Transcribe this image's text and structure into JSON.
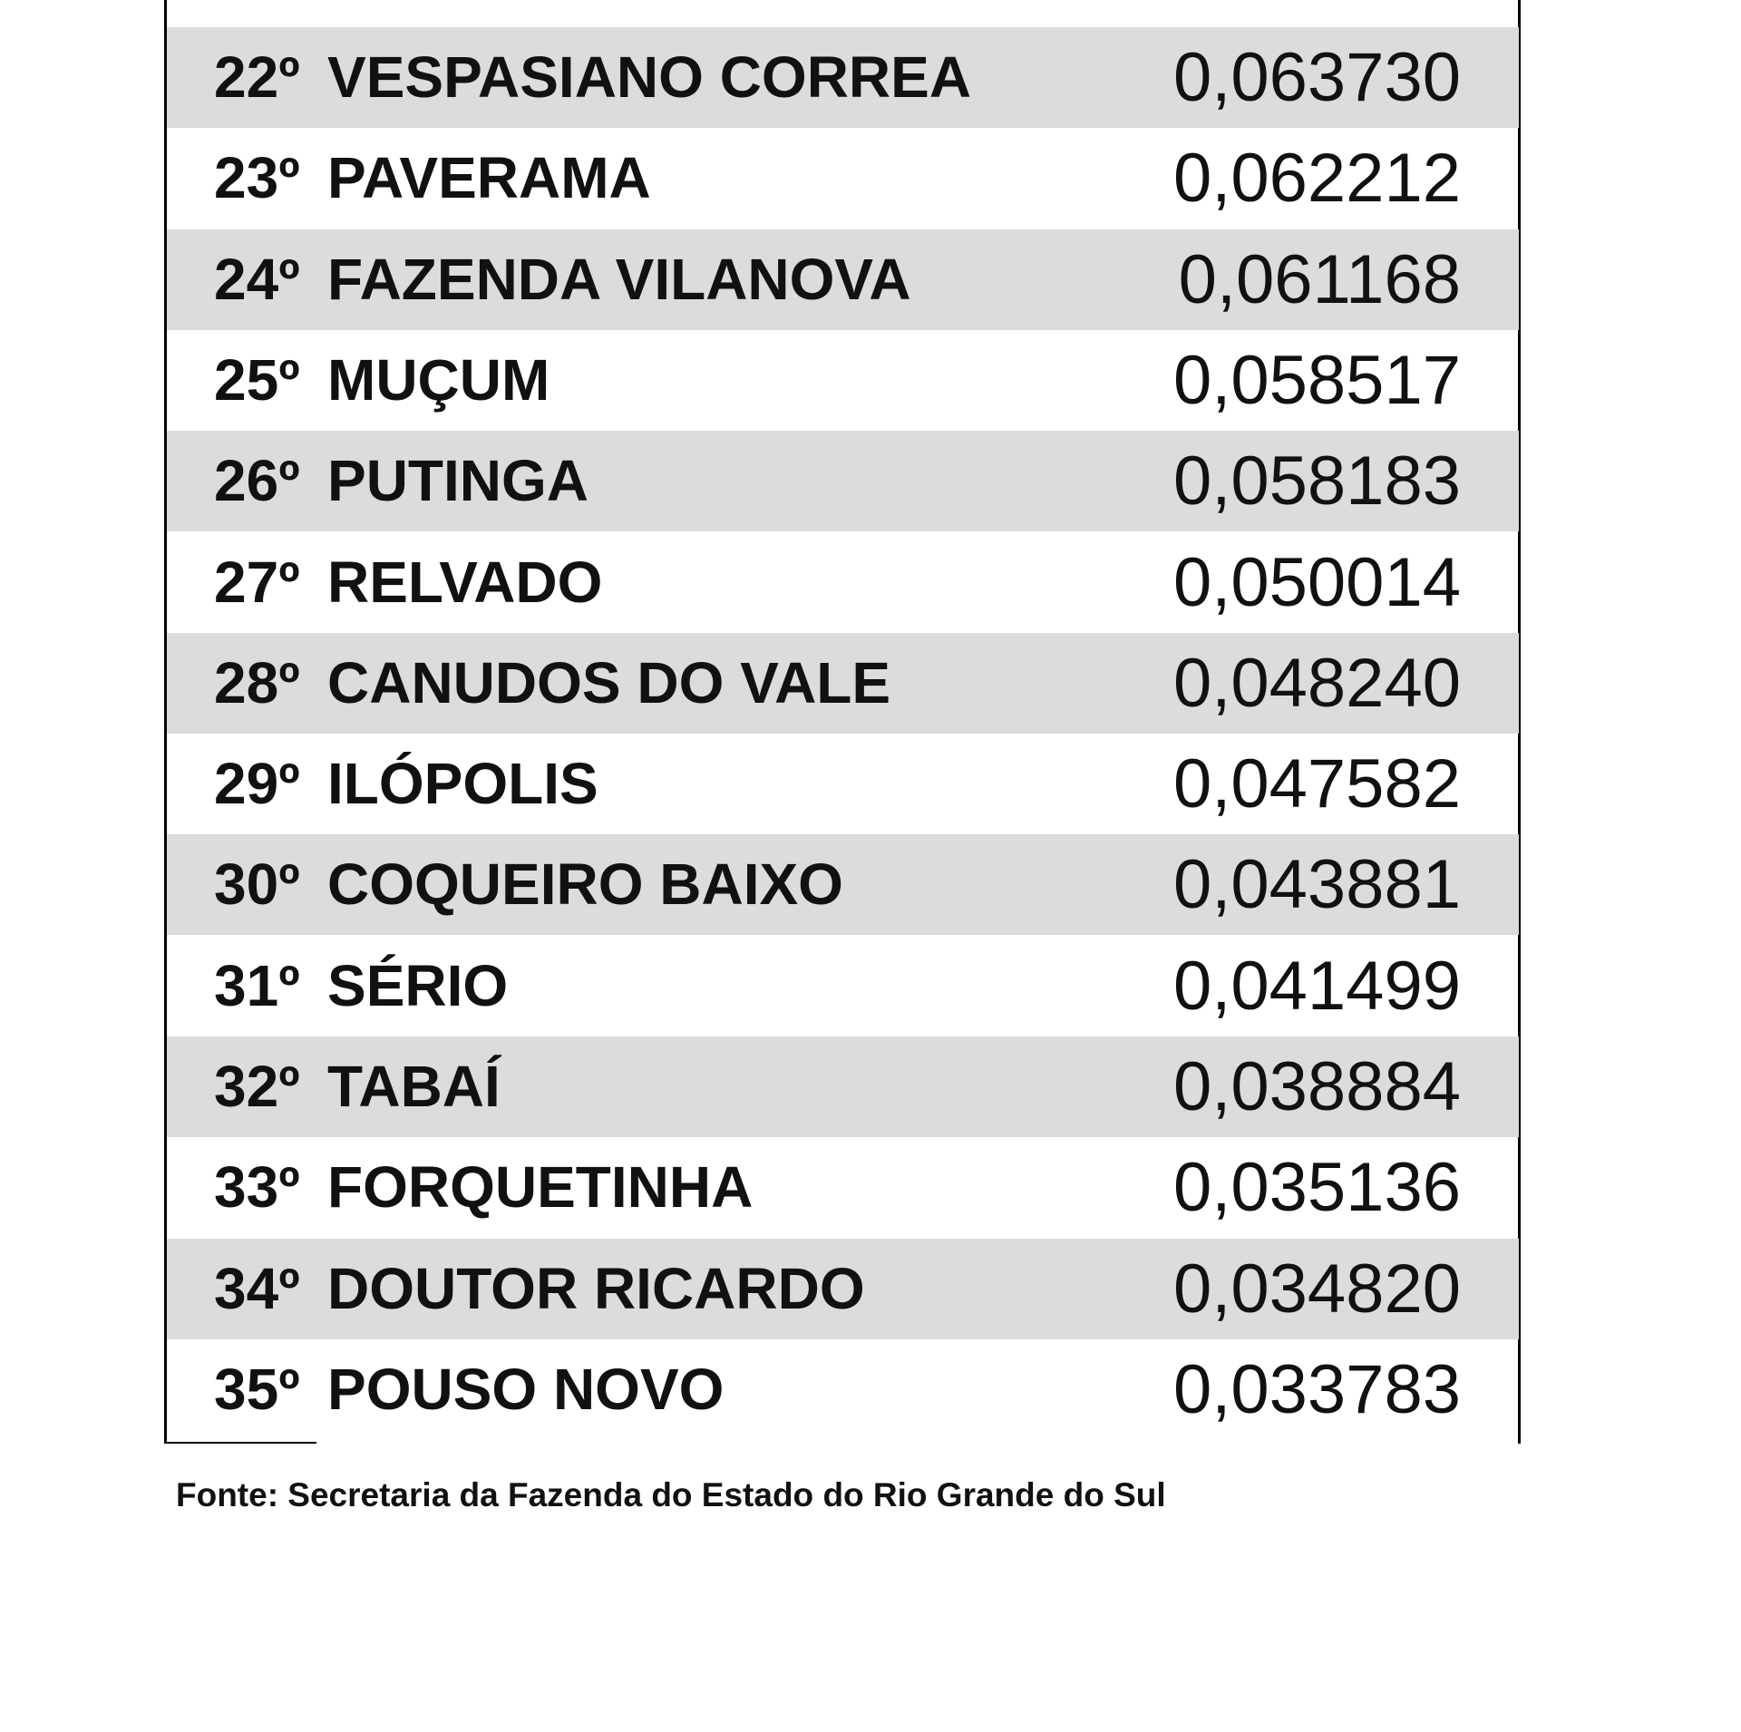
{
  "table": {
    "rows": [
      [
        "22º",
        "VESPASIANO CORREA",
        "0,063730"
      ],
      [
        "23º",
        "PAVERAMA",
        "0,062212"
      ],
      [
        "24º",
        "FAZENDA VILANOVA",
        "0,061168"
      ],
      [
        "25º",
        "MUÇUM",
        "0,058517"
      ],
      [
        "26º",
        "PUTINGA",
        "0,058183"
      ],
      [
        "27º",
        "RELVADO",
        "0,050014"
      ],
      [
        "28º",
        "CANUDOS DO VALE",
        "0,048240"
      ],
      [
        "29º",
        "ILÓPOLIS",
        "0,047582"
      ],
      [
        "30º",
        "COQUEIRO BAIXO",
        "0,043881"
      ],
      [
        "31º",
        "SÉRIO",
        "0,041499"
      ],
      [
        "32º",
        "TABAÍ",
        "0,038884"
      ],
      [
        "33º",
        "FORQUETINHA",
        "0,035136"
      ],
      [
        "34º",
        "DOUTOR RICARDO",
        "0,034820"
      ],
      [
        "35º",
        "POUSO NOVO",
        "0,033783"
      ]
    ]
  },
  "footer": {
    "source": "Fonte: Secretaria da Fazenda do Estado do Rio Grande do Sul"
  }
}
